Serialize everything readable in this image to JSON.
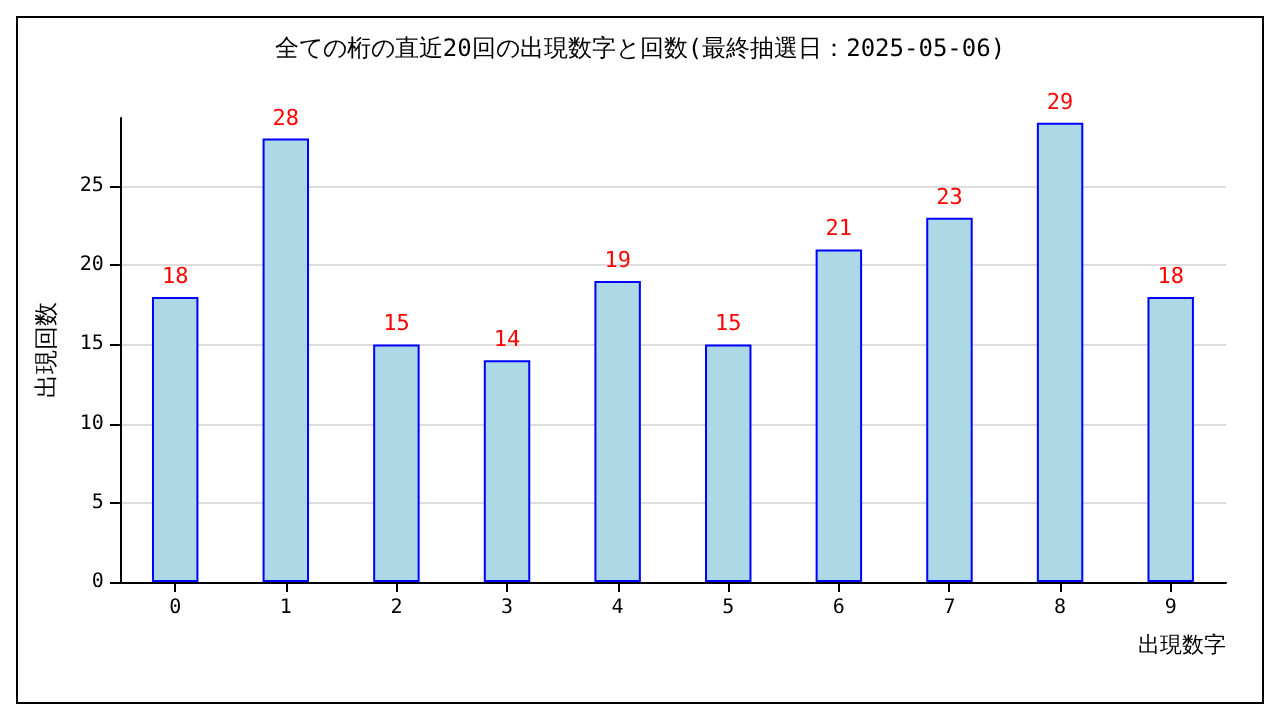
{
  "chart_data": {
    "type": "bar",
    "title": "全ての桁の直近20回の出現数字と回数(最終抽選日：2025-05-06)",
    "categories": [
      "0",
      "1",
      "2",
      "3",
      "4",
      "5",
      "6",
      "7",
      "8",
      "9"
    ],
    "values": [
      18,
      28,
      15,
      14,
      19,
      15,
      21,
      23,
      29,
      18
    ],
    "color": "#add8e6",
    "xlabel": "出現数字",
    "ylabel": "出現回数",
    "ylim": [
      0,
      29.3
    ],
    "yticks": [
      0,
      5,
      10,
      15,
      20,
      25
    ],
    "grid": "y",
    "data_labels": true
  }
}
